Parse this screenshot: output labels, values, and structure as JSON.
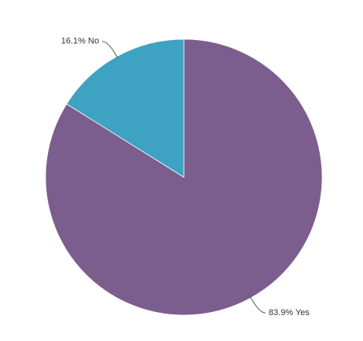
{
  "chart_data": {
    "type": "pie",
    "values": [
      83.9,
      16.1
    ],
    "value_labels": [
      "83.9% Yes",
      "16.1% No"
    ],
    "colors": [
      "#7b5e8e",
      "#3ea2c2"
    ]
  }
}
